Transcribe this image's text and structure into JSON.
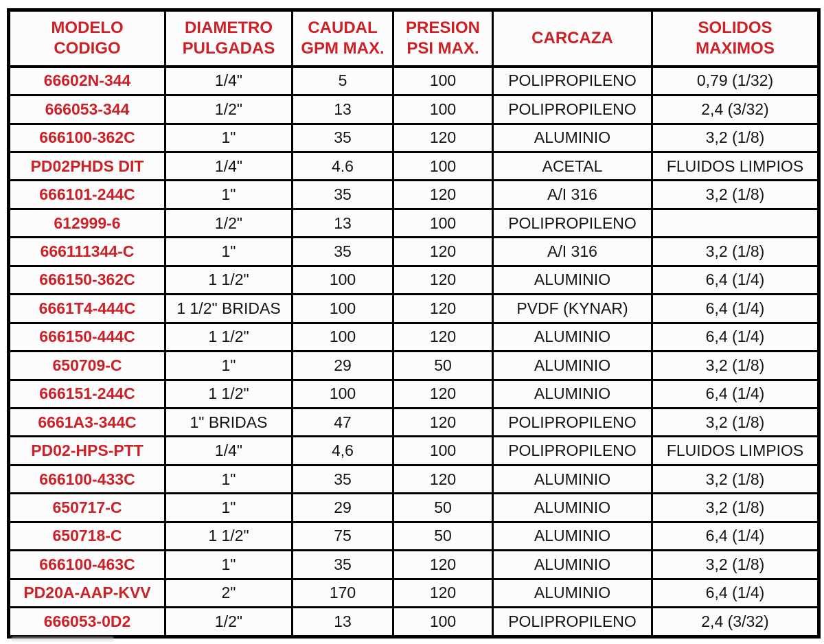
{
  "colors": {
    "accent_red": "#cc2127",
    "cell_text": "#141414",
    "border": "#000000",
    "cell_bg": "#fcfcfc"
  },
  "chart_data": {
    "type": "table",
    "columns": [
      "MODELO CODIGO",
      "DIAMETRO PULGADAS",
      "CAUDAL GPM MAX.",
      "PRESION PSI MAX.",
      "CARCAZA",
      "SOLIDOS MAXIMOS"
    ],
    "column_display": [
      "MODELO\nCODIGO",
      "DIAMETRO\nPULGADAS",
      "CAUDAL\nGPM MAX.",
      "PRESION\nPSI MAX.",
      "CARCAZA",
      "SOLIDOS\nMAXIMOS"
    ],
    "field_names": [
      "modelo",
      "diametro",
      "caudal",
      "presion",
      "carcaza",
      "solidos"
    ],
    "rows": [
      [
        "66602N-344",
        "1/4\"",
        "5",
        "100",
        "POLIPROPILENO",
        "0,79 (1/32)"
      ],
      [
        "666053-344",
        "1/2\"",
        "13",
        "100",
        "POLIPROPILENO",
        "2,4 (3/32)"
      ],
      [
        "666100-362C",
        "1\"",
        "35",
        "120",
        "ALUMINIO",
        "3,2 (1/8)"
      ],
      [
        "PD02PHDS DIT",
        "1/4\"",
        "4.6",
        "100",
        "ACETAL",
        "FLUIDOS LIMPIOS"
      ],
      [
        "666101-244C",
        "1\"",
        "35",
        "120",
        "A/I 316",
        "3,2 (1/8)"
      ],
      [
        "612999-6",
        "1/2\"",
        "13",
        "100",
        "POLIPROPILENO",
        ""
      ],
      [
        "666111344-C",
        "1\"",
        "35",
        "120",
        "A/I 316",
        "3,2 (1/8)"
      ],
      [
        "666150-362C",
        "1 1/2\"",
        "100",
        "120",
        "ALUMINIO",
        "6,4 (1/4)"
      ],
      [
        "6661T4-444C",
        "1 1/2\" BRIDAS",
        "100",
        "120",
        "PVDF (KYNAR)",
        "6,4 (1/4)"
      ],
      [
        "666150-444C",
        "1 1/2\"",
        "100",
        "120",
        "ALUMINIO",
        "6,4 (1/4)"
      ],
      [
        "650709-C",
        "1\"",
        "29",
        "50",
        "ALUMINIO",
        "3,2 (1/8)"
      ],
      [
        "666151-244C",
        "1 1/2\"",
        "100",
        "120",
        "ALUMINIO",
        "6,4 (1/4)"
      ],
      [
        "6661A3-344C",
        "1\" BRIDAS",
        "47",
        "120",
        "POLIPROPILENO",
        "3,2 (1/8)"
      ],
      [
        "PD02-HPS-PTT",
        "1/4\"",
        "4,6",
        "100",
        "POLIPROPILENO",
        "FLUIDOS LIMPIOS"
      ],
      [
        "666100-433C",
        "1\"",
        "35",
        "120",
        "ALUMINIO",
        "3,2 (1/8)"
      ],
      [
        "650717-C",
        "1\"",
        "29",
        "50",
        "ALUMINIO",
        "3,2 (1/8)"
      ],
      [
        "650718-C",
        "1 1/2\"",
        "75",
        "50",
        "ALUMINIO",
        "6,4 (1/4)"
      ],
      [
        "666100-463C",
        "1\"",
        "35",
        "120",
        "ALUMINIO",
        "3,2 (1/8)"
      ],
      [
        "PD20A-AAP-KVV",
        "2\"",
        "170",
        "120",
        "ALUMINIO",
        "6,4 (1/4)"
      ],
      [
        "666053-0D2",
        "1/2\"",
        "13",
        "100",
        "POLIPROPILENO",
        "2,4 (3/32)"
      ]
    ]
  }
}
